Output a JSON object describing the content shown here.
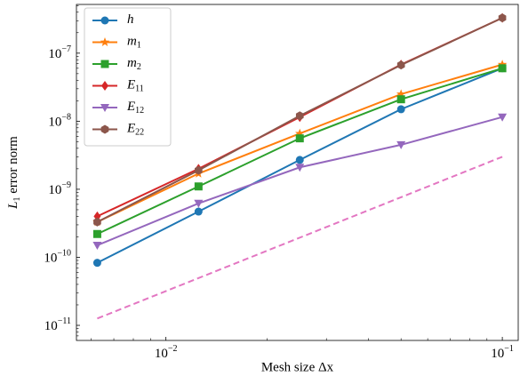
{
  "chart_data": {
    "type": "line",
    "x_label": "Mesh size Δx",
    "y_label": "L1 error norm",
    "xscale": "log",
    "yscale": "log",
    "x": [
      0.00625,
      0.0125,
      0.025,
      0.05,
      0.1
    ],
    "xlim": [
      0.00542,
      0.1115
    ],
    "ylim": [
      6e-12,
      5.2e-07
    ],
    "xticks": [
      {
        "value": 0.01,
        "label": "10−2"
      },
      {
        "value": 0.1,
        "label": "10−1"
      }
    ],
    "yticks": [
      {
        "value": 1e-11,
        "label": "10−11"
      },
      {
        "value": 1e-10,
        "label": "10−10"
      },
      {
        "value": 1e-09,
        "label": "10−9"
      },
      {
        "value": 1e-08,
        "label": "10−8"
      },
      {
        "value": 1e-07,
        "label": "10−7"
      }
    ],
    "legend": "upper left",
    "series": [
      {
        "name": "h",
        "color": "#1f77b4",
        "marker": "circle",
        "values": [
          8.3e-11,
          4.7e-10,
          2.7e-09,
          1.5e-08,
          6e-08
        ]
      },
      {
        "name": "m1",
        "color": "#ff7f0e",
        "marker": "star",
        "values": [
          3.3e-10,
          1.7e-09,
          6.6e-09,
          2.5e-08,
          6.8e-08
        ]
      },
      {
        "name": "m2",
        "color": "#2ca02c",
        "marker": "square",
        "values": [
          2.2e-10,
          1.1e-09,
          5.6e-09,
          2.1e-08,
          6e-08
        ]
      },
      {
        "name": "E11",
        "color": "#d62728",
        "marker": "diamond",
        "values": [
          4e-10,
          2e-09,
          1.15e-08,
          6.8e-08,
          3.3e-07
        ]
      },
      {
        "name": "E12",
        "color": "#9467bd",
        "marker": "triangle-down",
        "values": [
          1.5e-10,
          6.2e-10,
          2.1e-09,
          4.5e-09,
          1.15e-08
        ]
      },
      {
        "name": "E22",
        "color": "#8c564b",
        "marker": "hexagon",
        "values": [
          3.3e-10,
          1.9e-09,
          1.2e-08,
          6.7e-08,
          3.3e-07
        ]
      },
      {
        "color": "#e377c2",
        "dash": "dashed",
        "values": [
          1.26e-11,
          null,
          null,
          null,
          3e-09
        ]
      }
    ]
  }
}
